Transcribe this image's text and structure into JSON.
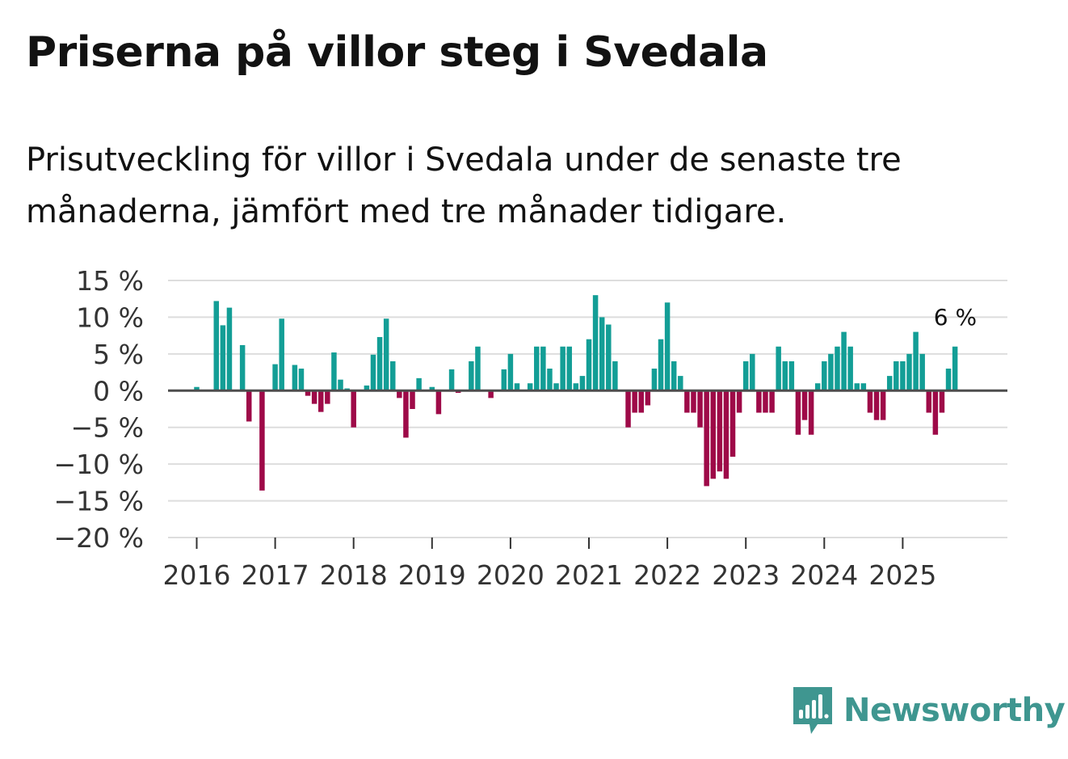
{
  "title": "Priserna på villor steg i Svedala",
  "subtitle": "Prisutveckling för villor i Svedala under de senaste tre månaderna, jämfört med tre månader tidigare.",
  "brand": {
    "name": "Newsworthy",
    "color": "#3f9690",
    "icon": "newsworthy-logo-icon"
  },
  "colors": {
    "positive": "#139e96",
    "negative": "#9e0a48",
    "grid": "#dddddd",
    "zero": "#4d4d4d"
  },
  "chart_data": {
    "type": "bar",
    "title": "Priserna på villor steg i Svedala",
    "xlabel": "",
    "ylabel": "",
    "ylim": [
      -20,
      15
    ],
    "yticks": [
      15,
      10,
      5,
      0,
      -5,
      -10,
      -15,
      -20
    ],
    "ytick_labels": [
      "15 %",
      "10 %",
      "5 %",
      "0 %",
      "−5 %",
      "−10 %",
      "−15 %",
      "−20 %"
    ],
    "xticks": [
      "2016",
      "2017",
      "2018",
      "2019",
      "2020",
      "2021",
      "2022",
      "2023",
      "2024",
      "2025"
    ],
    "x_start": "2015-09",
    "frequency": "monthly",
    "values": [
      0,
      0,
      0,
      0,
      0.5,
      0,
      0,
      12.2,
      8.9,
      11.3,
      0,
      6.2,
      -4.2,
      0,
      -13.6,
      0,
      3.6,
      9.8,
      0,
      3.5,
      3.0,
      -0.7,
      -1.8,
      -2.9,
      -1.8,
      5.2,
      1.5,
      0.3,
      -5.0,
      0,
      0.7,
      4.9,
      7.3,
      9.8,
      4.0,
      -1.0,
      -6.4,
      -2.5,
      1.7,
      0,
      0.5,
      -3.2,
      0,
      2.9,
      -0.3,
      0,
      4.0,
      6.0,
      0,
      -1.0,
      0,
      2.9,
      5.0,
      1.0,
      0,
      1.0,
      6.0,
      6.0,
      3.0,
      1.0,
      6.0,
      6.0,
      1.0,
      2.0,
      7.0,
      13.0,
      10.0,
      9.0,
      4.0,
      0,
      -5.0,
      -3.0,
      -3.0,
      -2.0,
      3.0,
      7.0,
      12.0,
      4.0,
      2.0,
      -3.0,
      -3.0,
      -5.0,
      -13.0,
      -12.0,
      -11.0,
      -12.0,
      -9.0,
      -3.0,
      4.0,
      5.0,
      -3.0,
      -3.0,
      -3.0,
      6.0,
      4.0,
      4.0,
      -6.0,
      -4.0,
      -6.0,
      1.0,
      4.0,
      5.0,
      6.0,
      8.0,
      6.0,
      1.0,
      1.0,
      -3.0,
      -4.0,
      -4.0,
      2.0,
      4.0,
      4.0,
      5.0,
      8.0,
      5.0,
      -3.0,
      -6.0,
      -3.0,
      3.0,
      6.0
    ],
    "annotations": [
      {
        "index": 120,
        "text": "6 %"
      }
    ]
  }
}
